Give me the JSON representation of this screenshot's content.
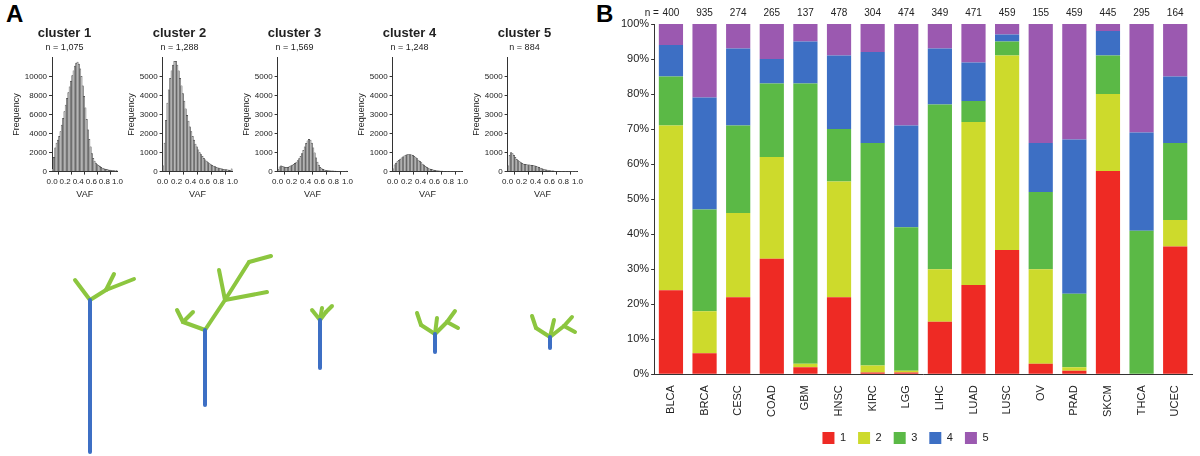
{
  "panel_labels": [
    "A",
    "B"
  ],
  "chart_data": [
    {
      "type": "histogram",
      "title": "cluster 1",
      "subtitle": "n = 1,075",
      "x_label": "VAF",
      "y_label": "Frequency",
      "color": "#bdbdbd",
      "grid": false,
      "bins": [
        0,
        0.02,
        0.04,
        0.06,
        0.08,
        0.1,
        0.12,
        0.14,
        0.16,
        0.18,
        0.2,
        0.22,
        0.24,
        0.26,
        0.28,
        0.3,
        0.32,
        0.34,
        0.36,
        0.38,
        0.4,
        0.42,
        0.44,
        0.46,
        0.48,
        0.5,
        0.52,
        0.54,
        0.56,
        0.58,
        0.6,
        0.62,
        0.64,
        0.66,
        0.68,
        0.7,
        0.72,
        0.74,
        0.76,
        0.78,
        0.8,
        0.82,
        0.84,
        0.86,
        0.88,
        0.9,
        0.92,
        0.94,
        0.96,
        0.98,
        1
      ],
      "counts": [
        300,
        1500,
        2500,
        3000,
        3300,
        3700,
        4200,
        4900,
        5600,
        6300,
        7000,
        7700,
        8300,
        8900,
        9500,
        10100,
        10600,
        11100,
        11400,
        11500,
        11300,
        10800,
        10000,
        9000,
        7900,
        6700,
        5500,
        4400,
        3400,
        2600,
        1900,
        1400,
        1100,
        900,
        750,
        650,
        550,
        450,
        380,
        320,
        270,
        230,
        200,
        170,
        150,
        130,
        110,
        100,
        90,
        120
      ],
      "xlim": [
        0,
        1
      ],
      "xticks": [
        {
          "value": 0,
          "label": "0.0"
        },
        0.2,
        0.4,
        0.6,
        0.8,
        {
          "value": 1,
          "label": "1.0"
        }
      ],
      "ylim": [
        0,
        12000
      ],
      "yticks": [
        0,
        2000,
        4000,
        6000,
        8000,
        10000
      ]
    },
    {
      "type": "histogram",
      "title": "cluster 2",
      "subtitle": "n = 1,288",
      "x_label": "VAF",
      "y_label": "Frequency",
      "color": "#bdbdbd",
      "grid": false,
      "bins": [
        0,
        0.02,
        0.04,
        0.06,
        0.08,
        0.1,
        0.12,
        0.14,
        0.16,
        0.18,
        0.2,
        0.22,
        0.24,
        0.26,
        0.28,
        0.3,
        0.32,
        0.34,
        0.36,
        0.38,
        0.4,
        0.42,
        0.44,
        0.46,
        0.48,
        0.5,
        0.52,
        0.54,
        0.56,
        0.58,
        0.6,
        0.62,
        0.64,
        0.66,
        0.68,
        0.7,
        0.72,
        0.74,
        0.76,
        0.78,
        0.8,
        0.82,
        0.84,
        0.86,
        0.88,
        0.9,
        0.92,
        0.94,
        0.96,
        0.98,
        1
      ],
      "counts": [
        300,
        1500,
        2700,
        3600,
        4300,
        4900,
        5300,
        5600,
        5800,
        5800,
        5600,
        5300,
        4900,
        4500,
        4100,
        3700,
        3300,
        2950,
        2650,
        2350,
        2100,
        1850,
        1650,
        1450,
        1300,
        1150,
        1000,
        900,
        800,
        700,
        620,
        550,
        480,
        420,
        370,
        330,
        290,
        260,
        230,
        200,
        180,
        160,
        140,
        120,
        110,
        100,
        90,
        80,
        70,
        150
      ],
      "xlim": [
        0,
        1
      ],
      "xticks": [
        {
          "value": 0,
          "label": "0.0"
        },
        0.2,
        0.4,
        0.6,
        0.8,
        {
          "value": 1,
          "label": "1.0"
        }
      ],
      "ylim": [
        0,
        6000
      ],
      "yticks": [
        0,
        1000,
        2000,
        3000,
        4000,
        5000
      ]
    },
    {
      "type": "histogram",
      "title": "cluster 3",
      "subtitle": "n = 1,569",
      "x_label": "VAF",
      "y_label": "Frequency",
      "color": "#bdbdbd",
      "grid": false,
      "bins": [
        0,
        0.02,
        0.04,
        0.06,
        0.08,
        0.1,
        0.12,
        0.14,
        0.16,
        0.18,
        0.2,
        0.22,
        0.24,
        0.26,
        0.28,
        0.3,
        0.32,
        0.34,
        0.36,
        0.38,
        0.4,
        0.42,
        0.44,
        0.46,
        0.48,
        0.5,
        0.52,
        0.54,
        0.56,
        0.58,
        0.6,
        0.62,
        0.64,
        0.66,
        0.68,
        0.7,
        0.72,
        0.74,
        0.76,
        0.78,
        0.8,
        0.82,
        0.84,
        0.86,
        0.88,
        0.9,
        0.92,
        0.94,
        0.96,
        0.98,
        1
      ],
      "counts": [
        100,
        250,
        300,
        280,
        250,
        230,
        220,
        230,
        260,
        300,
        340,
        380,
        430,
        500,
        580,
        680,
        800,
        950,
        1120,
        1300,
        1480,
        1620,
        1700,
        1650,
        1500,
        1250,
        980,
        720,
        500,
        340,
        230,
        160,
        120,
        90,
        70,
        60,
        50,
        45,
        40,
        35,
        30,
        28,
        25,
        22,
        20,
        18,
        16,
        14,
        12,
        30
      ],
      "xlim": [
        0,
        1
      ],
      "xticks": [
        {
          "value": 0,
          "label": "0.0"
        },
        0.2,
        0.4,
        0.6,
        0.8,
        {
          "value": 1,
          "label": "1.0"
        }
      ],
      "ylim": [
        0,
        6000
      ],
      "yticks": [
        0,
        1000,
        2000,
        3000,
        4000,
        5000
      ]
    },
    {
      "type": "histogram",
      "title": "cluster 4",
      "subtitle": "n = 1,248",
      "x_label": "VAF",
      "y_label": "Frequency",
      "color": "#bdbdbd",
      "grid": false,
      "bins": [
        0,
        0.02,
        0.04,
        0.06,
        0.08,
        0.1,
        0.12,
        0.14,
        0.16,
        0.18,
        0.2,
        0.22,
        0.24,
        0.26,
        0.28,
        0.3,
        0.32,
        0.34,
        0.36,
        0.38,
        0.4,
        0.42,
        0.44,
        0.46,
        0.48,
        0.5,
        0.52,
        0.54,
        0.56,
        0.58,
        0.6,
        0.62,
        0.64,
        0.66,
        0.68,
        0.7,
        0.72,
        0.74,
        0.76,
        0.78,
        0.8,
        0.82,
        0.84,
        0.86,
        0.88,
        0.9,
        0.92,
        0.94,
        0.96,
        0.98,
        1
      ],
      "counts": [
        150,
        350,
        450,
        520,
        590,
        660,
        720,
        780,
        830,
        870,
        890,
        900,
        900,
        880,
        850,
        800,
        740,
        680,
        610,
        540,
        470,
        400,
        340,
        280,
        230,
        190,
        150,
        120,
        100,
        80,
        65,
        55,
        45,
        38,
        32,
        28,
        24,
        20,
        18,
        16,
        14,
        12,
        11,
        10,
        9,
        8,
        7,
        6,
        5,
        15
      ],
      "xlim": [
        0,
        1
      ],
      "xticks": [
        {
          "value": 0,
          "label": "0.0"
        },
        0.2,
        0.4,
        0.6,
        0.8,
        {
          "value": 1,
          "label": "1.0"
        }
      ],
      "ylim": [
        0,
        6000
      ],
      "yticks": [
        0,
        1000,
        2000,
        3000,
        4000,
        5000
      ]
    },
    {
      "type": "histogram",
      "title": "cluster 5",
      "subtitle": "n = 884",
      "x_label": "VAF",
      "y_label": "Frequency",
      "color": "#bdbdbd",
      "grid": false,
      "bins": [
        0,
        0.02,
        0.04,
        0.06,
        0.08,
        0.1,
        0.12,
        0.14,
        0.16,
        0.18,
        0.2,
        0.22,
        0.24,
        0.26,
        0.28,
        0.3,
        0.32,
        0.34,
        0.36,
        0.38,
        0.4,
        0.42,
        0.44,
        0.46,
        0.48,
        0.5,
        0.52,
        0.54,
        0.56,
        0.58,
        0.6,
        0.62,
        0.64,
        0.66,
        0.68,
        0.7,
        0.72,
        0.74,
        0.76,
        0.78,
        0.8,
        0.82,
        0.84,
        0.86,
        0.88,
        0.9,
        0.92,
        0.94,
        0.96,
        0.98,
        1
      ],
      "counts": [
        300,
        850,
        1000,
        950,
        850,
        750,
        650,
        580,
        520,
        470,
        430,
        400,
        380,
        370,
        360,
        350,
        340,
        330,
        320,
        300,
        280,
        250,
        220,
        190,
        160,
        130,
        110,
        90,
        75,
        60,
        50,
        42,
        36,
        30,
        26,
        22,
        19,
        16,
        14,
        12,
        10,
        9,
        8,
        7,
        6,
        5,
        5,
        4,
        4,
        10
      ],
      "xlim": [
        0,
        1
      ],
      "xticks": [
        {
          "value": 0,
          "label": "0.0"
        },
        0.2,
        0.4,
        0.6,
        0.8,
        {
          "value": 1,
          "label": "1.0"
        }
      ],
      "ylim": [
        0,
        6000
      ],
      "yticks": [
        0,
        1000,
        2000,
        3000,
        4000,
        5000
      ]
    },
    {
      "type": "bar",
      "stacked": true,
      "grid": false,
      "legend": "bottom",
      "categories": [
        "BLCA",
        "BRCA",
        "CESC",
        "COAD",
        "GBM",
        "HNSC",
        "KIRC",
        "LGG",
        "LIHC",
        "LUAD",
        "LUSC",
        "OV",
        "PRAD",
        "SKCM",
        "THCA",
        "UCEC"
      ],
      "n_label": "n =",
      "n": [
        400,
        935,
        274,
        265,
        137,
        478,
        304,
        474,
        349,
        471,
        459,
        155,
        459,
        445,
        295,
        164
      ],
      "series": [
        {
          "name": "1",
          "color": "#ee2a24",
          "values": [
            24,
            6,
            22,
            33,
            2,
            22,
            0.5,
            0.5,
            15,
            25.5,
            35.5,
            3,
            1,
            58,
            0,
            36.5
          ]
        },
        {
          "name": "2",
          "color": "#cdda2c",
          "values": [
            47,
            12,
            24,
            29,
            1,
            33,
            2,
            0.5,
            15,
            46.5,
            55.5,
            27,
            1,
            22,
            0,
            7.5
          ]
        },
        {
          "name": "3",
          "color": "#5bb946",
          "values": [
            14,
            29,
            25,
            21,
            80,
            15,
            63.5,
            41,
            47,
            6,
            4,
            22,
            21,
            11,
            41,
            22
          ]
        },
        {
          "name": "4",
          "color": "#3d6fc4",
          "values": [
            9,
            32,
            22,
            7,
            12,
            21,
            26,
            29,
            16,
            11,
            2,
            14,
            44,
            7,
            28,
            19
          ]
        },
        {
          "name": "5",
          "color": "#9b59b0",
          "values": [
            6,
            21,
            7,
            10,
            5,
            9,
            8,
            29,
            7,
            11,
            3,
            34,
            33,
            2,
            31,
            15
          ]
        }
      ],
      "ylim": [
        0,
        100
      ],
      "yticks": [
        {
          "value": 0,
          "label": "0%"
        },
        {
          "value": 10,
          "label": "10%"
        },
        {
          "value": 20,
          "label": "20%"
        },
        {
          "value": 30,
          "label": "30%"
        },
        {
          "value": 40,
          "label": "40%"
        },
        {
          "value": 50,
          "label": "50%"
        },
        {
          "value": 60,
          "label": "60%"
        },
        {
          "value": 70,
          "label": "70%"
        },
        {
          "value": 80,
          "label": "80%"
        },
        {
          "value": 90,
          "label": "90%"
        },
        {
          "value": 100,
          "label": "100%"
        }
      ]
    }
  ]
}
